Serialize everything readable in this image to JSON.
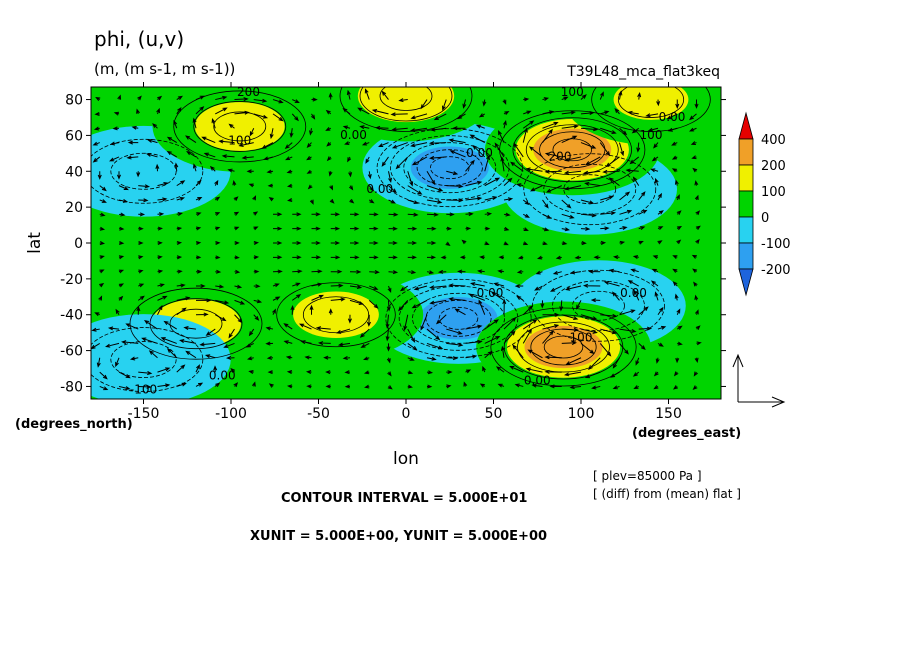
{
  "chart_data": {
    "type": "heatmap",
    "title": "phi, (u,v)",
    "subtitle": "(m, (m s-1, m s-1))",
    "experiment": "T39L48_mca_flat3keq",
    "xlabel": "lon",
    "ylabel": "lat",
    "xunit_label": "(degrees_east)",
    "yunit_label": "(degrees_north)",
    "xlim": [
      -180,
      180
    ],
    "ylim": [
      -87,
      87
    ],
    "xticks": [
      -150,
      -100,
      -50,
      0,
      50,
      100,
      150
    ],
    "yticks": [
      80,
      60,
      40,
      20,
      0,
      -20,
      -40,
      -60,
      -80
    ],
    "legend_position": "right",
    "colorbar": {
      "labels": [
        "400",
        "200",
        "100",
        "0",
        "-100",
        "-200"
      ],
      "levels": [
        -300,
        -200,
        -100,
        0,
        100,
        200,
        400
      ],
      "colors": [
        "#1e64dc",
        "#2ea0f0",
        "#28d2f0",
        "#00d400",
        "#f0f000",
        "#f0a028",
        "#e60000"
      ]
    },
    "contour_labels": [
      {
        "text": "200",
        "lon": -90,
        "lat": 82
      },
      {
        "text": "100",
        "lon": 95,
        "lat": 82
      },
      {
        "text": "100",
        "lon": -95,
        "lat": 55
      },
      {
        "text": "0.00",
        "lon": -30,
        "lat": 58
      },
      {
        "text": "100",
        "lon": 140,
        "lat": 58
      },
      {
        "text": "0.00",
        "lon": 152,
        "lat": 68
      },
      {
        "text": "200",
        "lon": 88,
        "lat": 46
      },
      {
        "text": "0.00",
        "lon": 42,
        "lat": 48
      },
      {
        "text": "0.00",
        "lon": -15,
        "lat": 28
      },
      {
        "text": "0.00",
        "lon": 130,
        "lat": -30
      },
      {
        "text": "0.00",
        "lon": 48,
        "lat": -30
      },
      {
        "text": "100",
        "lon": 100,
        "lat": -55
      },
      {
        "text": "0.00",
        "lon": -105,
        "lat": -76
      },
      {
        "text": "-100",
        "lon": -150,
        "lat": -84
      },
      {
        "text": "0.00",
        "lon": 75,
        "lat": -79
      }
    ],
    "anomaly_centers": [
      {
        "lon": 25,
        "lat": 42,
        "value": -250
      },
      {
        "lon": 30,
        "lat": -42,
        "value": -250
      },
      {
        "lon": 105,
        "lat": 30,
        "value": -150
      },
      {
        "lon": 110,
        "lat": -35,
        "value": -150
      },
      {
        "lon": 95,
        "lat": 52,
        "value": 250
      },
      {
        "lon": 90,
        "lat": -58,
        "value": 250
      },
      {
        "lon": -120,
        "lat": -45,
        "value": 130
      },
      {
        "lon": -40,
        "lat": -40,
        "value": 120
      },
      {
        "lon": -150,
        "lat": -65,
        "value": -120
      },
      {
        "lon": -150,
        "lat": 40,
        "value": -80
      },
      {
        "lon": 0,
        "lat": 82,
        "value": 150
      },
      {
        "lon": -95,
        "lat": 65,
        "value": 130
      },
      {
        "lon": 140,
        "lat": 80,
        "value": 100
      }
    ],
    "vector_reference": {
      "xunit": 5.0,
      "yunit": 5.0
    }
  },
  "footer": {
    "plev": "[ plev=85000 Pa ]",
    "diff": "[ (diff) from (mean) flat ]",
    "contour_interval": "CONTOUR INTERVAL = 5.000E+01",
    "units": "XUNIT = 5.000E+00, YUNIT = 5.000E+00"
  }
}
